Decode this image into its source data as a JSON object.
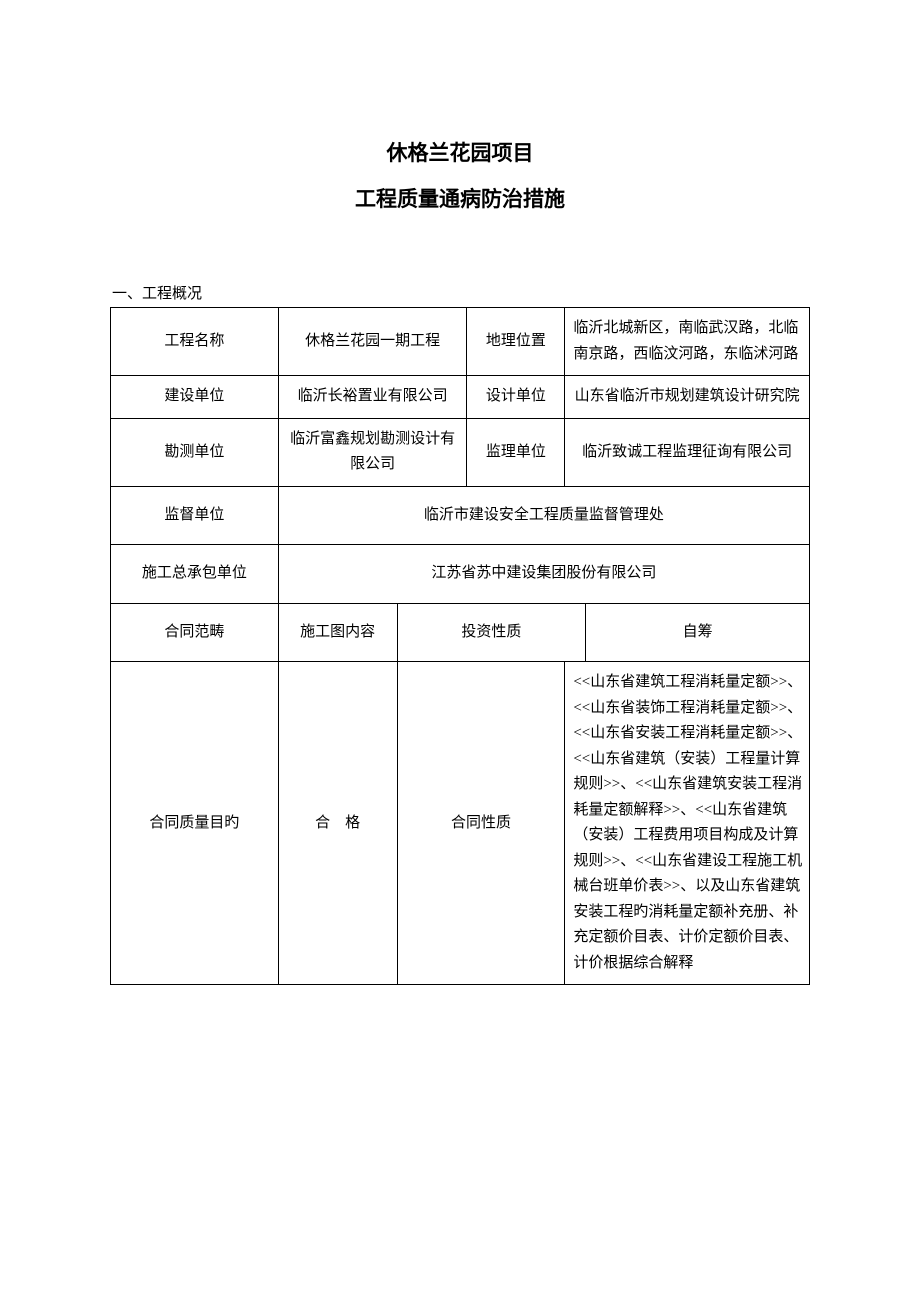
{
  "title": {
    "line1": "休格兰花园项目",
    "line2": "工程质量通病防治措施"
  },
  "section_heading": "一、工程概况",
  "table": {
    "row1": {
      "label1": "工程名称",
      "value1": "休格兰花园一期工程",
      "label2": "地理位置",
      "value2": "临沂北城新区，南临武汉路，北临南京路，西临汶河路，东临沭河路"
    },
    "row2": {
      "label1": "建设单位",
      "value1": "临沂长裕置业有限公司",
      "label2": "设计单位",
      "value2": "山东省临沂市规划建筑设计研究院"
    },
    "row3": {
      "label1": "勘测单位",
      "value1": "临沂富鑫规划勘测设计有限公司",
      "label2": "监理单位",
      "value2": "临沂致诚工程监理征询有限公司"
    },
    "row4": {
      "label1": "监督单位",
      "value1": "临沂市建设安全工程质量监督管理处"
    },
    "row5": {
      "label1": "施工总承包单位",
      "value1": "江苏省苏中建设集团股份有限公司"
    },
    "row6": {
      "label1": "合同范畴",
      "value1": "施工图内容",
      "label2": "投资性质",
      "value2": "自筹"
    },
    "row7": {
      "label1": "合同质量目旳",
      "value1": "合　格",
      "label2": "合同性质",
      "value2": "<<山东省建筑工程消耗量定额>>、<<山东省装饰工程消耗量定额>>、<<山东省安装工程消耗量定额>>、<<山东省建筑（安装）工程量计算规则>>、<<山东省建筑安装工程消耗量定额解释>>、<<山东省建筑（安装）工程费用项目构成及计算规则>>、<<山东省建设工程施工机械台班单价表>>、以及山东省建筑安装工程旳消耗量定额补充册、补充定额价目表、计价定额价目表、计价根据综合解释"
    }
  },
  "style": {
    "font_family": "SimSun",
    "title_fontsize": 21,
    "body_fontsize": 15,
    "border_color": "#000000",
    "background_color": "#ffffff",
    "text_color": "#000000"
  }
}
